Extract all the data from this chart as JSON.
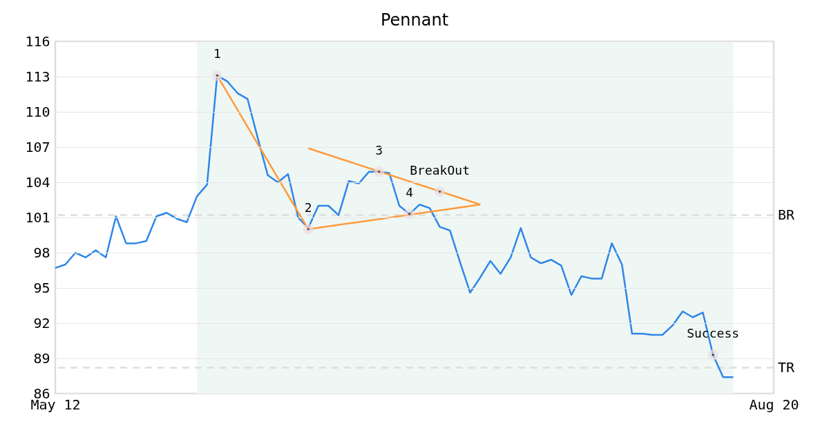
{
  "chart_data": {
    "type": "line",
    "title": "Pennant",
    "categories": [
      "May 12",
      null,
      null,
      null,
      null,
      null,
      null,
      null,
      null,
      null,
      null,
      null,
      null,
      null,
      null,
      null,
      null,
      null,
      null,
      null,
      null,
      null,
      null,
      null,
      null,
      null,
      null,
      null,
      null,
      null,
      null,
      null,
      null,
      null,
      null,
      null,
      null,
      null,
      null,
      null,
      null,
      null,
      null,
      null,
      null,
      null,
      null,
      null,
      null,
      null,
      null,
      null,
      null,
      null,
      null,
      null,
      null,
      null,
      null,
      null,
      null,
      null,
      null,
      null,
      null,
      null,
      null,
      null,
      null,
      null,
      null,
      "Aug 20"
    ],
    "ylim": [
      86,
      116
    ],
    "yticks": [
      86,
      89,
      92,
      95,
      98,
      101,
      104,
      107,
      110,
      113,
      116
    ],
    "grid": "y",
    "series": [
      {
        "color": "#2e86e8",
        "values": [
          96.7,
          97.0,
          98.0,
          97.6,
          98.2,
          97.6,
          101.1,
          98.8,
          98.8,
          99.0,
          101.1,
          101.4,
          100.9,
          100.6,
          102.8,
          103.8,
          113.1,
          112.6,
          111.6,
          111.1,
          107.8,
          104.6,
          104.0,
          104.7,
          101.0,
          100.1,
          102.0,
          102.0,
          101.2,
          104.1,
          103.9,
          104.9,
          104.9,
          104.8,
          102.0,
          101.3,
          102.1,
          101.8,
          100.2,
          99.9,
          97.2,
          94.6,
          95.9,
          97.3,
          96.2,
          97.6,
          100.1,
          97.6,
          97.1,
          97.4,
          96.9,
          94.4,
          96.0,
          95.8,
          95.8,
          98.8,
          97.0,
          91.1,
          91.1,
          91.0,
          91.0,
          91.8,
          93.0,
          92.5,
          92.9,
          89.3,
          87.4,
          87.4,
          null,
          null,
          null,
          null
        ]
      },
      {
        "type": "line",
        "color": "#ff9a3c",
        "values": [
          null,
          null,
          null,
          null,
          null,
          null,
          null,
          null,
          null,
          null,
          null,
          null,
          null,
          null,
          null,
          null,
          113.1,
          null,
          null,
          null,
          null,
          null,
          null,
          null,
          null,
          100.0,
          null,
          null,
          null,
          null,
          null,
          null,
          null,
          null,
          null,
          null,
          null,
          null,
          null,
          null,
          null,
          null,
          null,
          null,
          null,
          null,
          null,
          null,
          null,
          null,
          null,
          null,
          null,
          null,
          null,
          null,
          null,
          null,
          null,
          null,
          null,
          null,
          null,
          null,
          null,
          null,
          null,
          null,
          null,
          null,
          null,
          null
        ]
      },
      {
        "type": "line",
        "color": "#ff9a3c",
        "values": [
          null,
          null,
          null,
          null,
          null,
          null,
          null,
          null,
          null,
          null,
          null,
          null,
          null,
          null,
          null,
          null,
          null,
          null,
          null,
          null,
          null,
          null,
          null,
          null,
          null,
          106.9,
          null,
          null,
          null,
          null,
          null,
          null,
          null,
          null,
          null,
          null,
          null,
          null,
          null,
          null,
          null,
          null,
          102.1,
          null,
          null,
          null,
          null,
          null,
          null,
          null,
          null,
          null,
          null,
          null,
          null,
          null,
          null,
          null,
          null,
          null,
          null,
          null,
          null,
          null,
          null,
          null,
          null,
          null,
          null,
          null,
          null,
          null
        ]
      },
      {
        "type": "line",
        "color": "#ff9a3c",
        "values": [
          null,
          null,
          null,
          null,
          null,
          null,
          null,
          null,
          null,
          null,
          null,
          null,
          null,
          null,
          null,
          null,
          null,
          null,
          null,
          null,
          null,
          null,
          null,
          null,
          null,
          100.0,
          null,
          null,
          null,
          null,
          null,
          null,
          null,
          null,
          null,
          null,
          null,
          null,
          null,
          null,
          null,
          null,
          102.1,
          null,
          null,
          null,
          null,
          null,
          null,
          null,
          null,
          null,
          null,
          null,
          null,
          null,
          null,
          null,
          null,
          null,
          null,
          null,
          null,
          null,
          null,
          null,
          null,
          null,
          null,
          null,
          null,
          null
        ]
      },
      {
        "type": "scatter",
        "color": "#000000",
        "marker": "circle",
        "values": [
          null,
          null,
          null,
          null,
          null,
          null,
          null,
          null,
          null,
          null,
          null,
          null,
          null,
          null,
          null,
          null,
          113.1,
          null,
          null,
          null,
          null,
          null,
          null,
          null,
          null,
          100.0,
          null,
          null,
          null,
          null,
          null,
          null,
          104.9,
          null,
          null,
          101.3,
          null,
          null,
          103.2,
          null,
          null,
          null,
          null,
          null,
          null,
          null,
          null,
          null,
          null,
          null,
          null,
          null,
          null,
          null,
          null,
          null,
          null,
          null,
          null,
          null,
          null,
          null,
          null,
          null,
          null,
          89.3,
          null,
          null,
          null,
          null,
          null,
          null
        ]
      }
    ],
    "annotations": [
      {
        "text": "1",
        "y": 113.1
      },
      {
        "text": "2",
        "y": 100.0
      },
      {
        "text": "3",
        "y": 104.9
      },
      {
        "text": "4",
        "y": 101.3
      },
      {
        "text": "BreakOut",
        "y": 103.2
      },
      {
        "text": "Success",
        "y": 89.3
      }
    ],
    "ref_lines": [
      {
        "axis": "y",
        "value": 101.2,
        "label": "BR",
        "color": "#dddddd",
        "line_style": "dashed"
      },
      {
        "axis": "y",
        "value": 88.2,
        "label": "TR",
        "color": "#dddddd",
        "line_style": "dashed"
      }
    ]
  }
}
